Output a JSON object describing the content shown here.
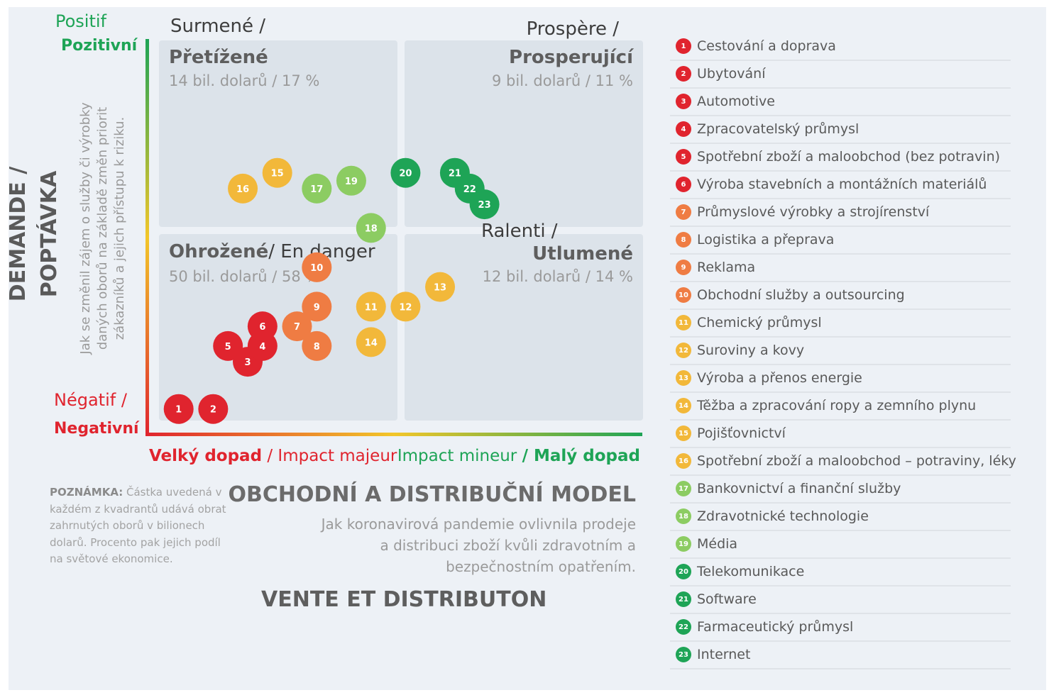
{
  "corner": {
    "positive_fr": "Positif",
    "positive_cz": "Pozitivní",
    "negative_fr": "Négatif /",
    "negative_cz": "Negativní"
  },
  "quadrants": {
    "top_left": {
      "overlay": "Surmené /",
      "title": "Přetížené",
      "amount": "14 bil. dolarů / 17 %"
    },
    "top_right": {
      "overlay": "Prospère /",
      "title": "Prosperující",
      "amount": "9 bil. dolarů / 11 %"
    },
    "bottom_left": {
      "title": "Ohrožené",
      "overlay": "/ En danger",
      "amount": "50 bil. dolarů / 58 %"
    },
    "bottom_right": {
      "overlay": "Ralenti /",
      "title": "Utlumené",
      "amount": "12 bil. dolarů / 14 %"
    }
  },
  "y_axis": {
    "label_line1": "DEMANDE /",
    "label_line2": "POPTÁVKA",
    "desc_line1": "Jak se změnil zájem o služby či výrobky",
    "desc_line2": "daných oborů na základě změn priorit",
    "desc_line3": "zákazníků a jejich přístupu k riziku."
  },
  "x_axis": {
    "left_cz": "Velký dopad",
    "left_fr": "/ Impact majeur",
    "right_fr": "Impact mineur",
    "right_cz": "/ Malý dopad",
    "title": "OBCHODNÍ A DISTRIBUČNÍ MODEL",
    "desc_line1": "Jak koronavirová pandemie ovlivnila prodeje",
    "desc_line2": "a distribuci zboží kvůli zdravotním a",
    "desc_line3": "bezpečnostním opatřením.",
    "title_fr": "VENTE ET DISTRIBUTON"
  },
  "note": {
    "label": "POZNÁMKA:",
    "line1": " Částka uvedená v",
    "line2": "každém z kvadrantů udává obrat",
    "line3": "zahrnutých oborů v bilionech",
    "line4": "dolarů. Procento pak jejich podíl",
    "line5": "na světové ekonomice."
  },
  "colors": {
    "red": "#e0242e",
    "orange": "#ef7c43",
    "yellow": "#f2b83a",
    "light_green": "#8ccc62",
    "green": "#1ea456",
    "quadrant_bg": "#dce3ea",
    "axis_label_green": "#1ea456",
    "axis_label_red": "#e0242e"
  },
  "chart_data": {
    "type": "scatter",
    "x_range": [
      0,
      10
    ],
    "y_range": [
      0,
      10
    ],
    "points": [
      {
        "id": "1",
        "x": 0.6,
        "y": 0.6,
        "color": "red"
      },
      {
        "id": "2",
        "x": 1.3,
        "y": 0.6,
        "color": "red"
      },
      {
        "id": "3",
        "x": 2.0,
        "y": 1.8,
        "color": "red"
      },
      {
        "id": "4",
        "x": 2.3,
        "y": 2.2,
        "color": "red"
      },
      {
        "id": "5",
        "x": 1.6,
        "y": 2.2,
        "color": "red"
      },
      {
        "id": "6",
        "x": 2.3,
        "y": 2.7,
        "color": "red"
      },
      {
        "id": "7",
        "x": 3.0,
        "y": 2.7,
        "color": "orange"
      },
      {
        "id": "8",
        "x": 3.4,
        "y": 2.2,
        "color": "orange"
      },
      {
        "id": "9",
        "x": 3.4,
        "y": 3.2,
        "color": "orange"
      },
      {
        "id": "10",
        "x": 3.4,
        "y": 4.2,
        "color": "orange"
      },
      {
        "id": "11",
        "x": 4.5,
        "y": 3.2,
        "color": "yellow"
      },
      {
        "id": "12",
        "x": 5.2,
        "y": 3.2,
        "color": "yellow"
      },
      {
        "id": "13",
        "x": 5.9,
        "y": 3.7,
        "color": "yellow"
      },
      {
        "id": "14",
        "x": 4.5,
        "y": 2.3,
        "color": "yellow"
      },
      {
        "id": "15",
        "x": 2.6,
        "y": 6.6,
        "color": "yellow"
      },
      {
        "id": "16",
        "x": 1.9,
        "y": 6.2,
        "color": "yellow"
      },
      {
        "id": "17",
        "x": 3.4,
        "y": 6.2,
        "color": "light_green"
      },
      {
        "id": "18",
        "x": 4.5,
        "y": 5.2,
        "color": "light_green"
      },
      {
        "id": "19",
        "x": 4.1,
        "y": 6.4,
        "color": "light_green"
      },
      {
        "id": "20",
        "x": 5.2,
        "y": 6.6,
        "color": "green"
      },
      {
        "id": "21",
        "x": 6.2,
        "y": 6.6,
        "color": "green"
      },
      {
        "id": "22",
        "x": 6.5,
        "y": 6.2,
        "color": "green"
      },
      {
        "id": "23",
        "x": 6.8,
        "y": 5.8,
        "color": "green"
      }
    ],
    "legend": [
      {
        "id": "1",
        "label": "Cestování a doprava",
        "color": "red"
      },
      {
        "id": "2",
        "label": "Ubytování",
        "color": "red"
      },
      {
        "id": "3",
        "label": "Automotive",
        "color": "red"
      },
      {
        "id": "4",
        "label": "Zpracovatelský průmysl",
        "color": "red"
      },
      {
        "id": "5",
        "label": "Spotřební zboží a maloobchod (bez potravin)",
        "color": "red"
      },
      {
        "id": "6",
        "label": "Výroba stavebních a montážních materiálů",
        "color": "red"
      },
      {
        "id": "7",
        "label": "Průmyslové výrobky a strojírenství",
        "color": "orange"
      },
      {
        "id": "8",
        "label": "Logistika a přeprava",
        "color": "orange"
      },
      {
        "id": "9",
        "label": "Reklama",
        "color": "orange"
      },
      {
        "id": "10",
        "label": "Obchodní služby a outsourcing",
        "color": "orange"
      },
      {
        "id": "11",
        "label": "Chemický průmysl",
        "color": "yellow"
      },
      {
        "id": "12",
        "label": "Suroviny a kovy",
        "color": "yellow"
      },
      {
        "id": "13",
        "label": "Výroba a přenos energie",
        "color": "yellow"
      },
      {
        "id": "14",
        "label": "Těžba a zpracování ropy a zemního plynu",
        "color": "yellow"
      },
      {
        "id": "15",
        "label": "Pojišťovnictví",
        "color": "yellow"
      },
      {
        "id": "16",
        "label": "Spotřební zboží a maloobchod – potraviny, léky",
        "color": "yellow"
      },
      {
        "id": "17",
        "label": "Bankovnictví a finanční služby",
        "color": "light_green"
      },
      {
        "id": "18",
        "label": "Zdravotnické technologie",
        "color": "light_green"
      },
      {
        "id": "19",
        "label": "Média",
        "color": "light_green"
      },
      {
        "id": "20",
        "label": "Telekomunikace",
        "color": "green"
      },
      {
        "id": "21",
        "label": "Software",
        "color": "green"
      },
      {
        "id": "22",
        "label": "Farmaceutický průmysl",
        "color": "green"
      },
      {
        "id": "23",
        "label": "Internet",
        "color": "green"
      }
    ]
  }
}
